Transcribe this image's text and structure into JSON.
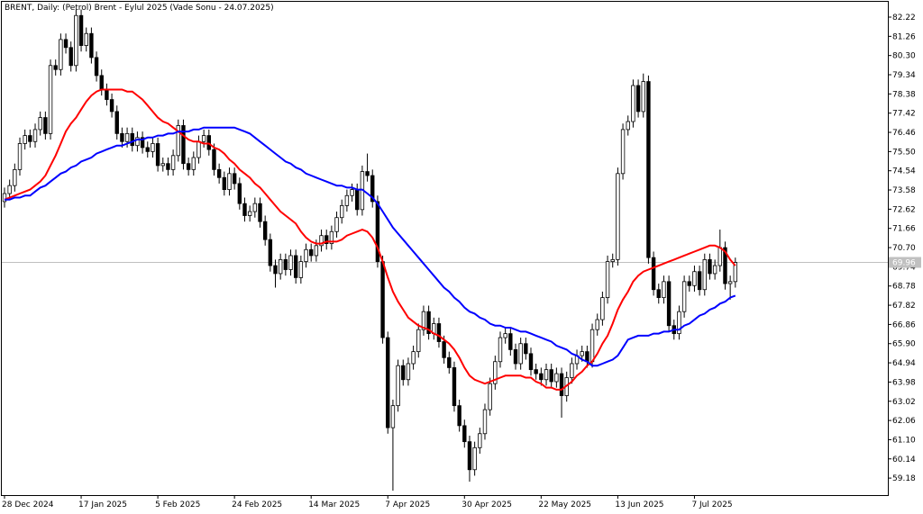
{
  "chart_data": {
    "type": "candlestick",
    "title": "BRENT, Daily:  (Petrol) Brent - Eylul 2025 (Vade Sonu - 24.07.2025)",
    "categories": [
      "28 Dec 2024",
      null,
      null,
      null,
      null,
      null,
      null,
      null,
      null,
      null,
      null,
      null,
      null,
      null,
      null,
      "17 Jan 2025",
      null,
      null,
      null,
      null,
      null,
      null,
      null,
      null,
      null,
      null,
      null,
      null,
      null,
      null,
      "5 Feb 2025",
      null,
      null,
      null,
      null,
      null,
      null,
      null,
      null,
      null,
      null,
      null,
      null,
      null,
      null,
      "24 Feb 2025",
      null,
      null,
      null,
      null,
      null,
      null,
      null,
      null,
      null,
      null,
      null,
      null,
      null,
      null,
      "14 Mar 2025",
      null,
      null,
      null,
      null,
      null,
      null,
      null,
      null,
      null,
      null,
      null,
      null,
      null,
      null,
      "7 Apr 2025",
      null,
      null,
      null,
      null,
      null,
      null,
      null,
      null,
      null,
      null,
      null,
      null,
      null,
      null,
      "30 Apr 2025",
      null,
      null,
      null,
      null,
      null,
      null,
      null,
      null,
      null,
      null,
      null,
      null,
      null,
      null,
      "22 May 2025",
      null,
      null,
      null,
      null,
      null,
      null,
      null,
      null,
      null,
      null,
      null,
      null,
      null,
      null,
      "13 Jun 2025",
      null,
      null,
      null,
      null,
      null,
      null,
      null,
      null,
      null,
      null,
      null,
      null,
      null,
      null,
      "7 Jul 2025",
      null,
      null,
      null,
      null,
      null,
      null,
      null,
      null
    ],
    "open": [
      73.0,
      73.4,
      73.8,
      74.6,
      75.9,
      76.3,
      76.0,
      76.6,
      77.2,
      76.4,
      79.8,
      79.6,
      81.1,
      80.7,
      79.8,
      82.3,
      80.8,
      81.4,
      80.2,
      79.3,
      78.6,
      78.1,
      77.5,
      76.4,
      76.0,
      76.4,
      75.8,
      76.2,
      75.7,
      75.5,
      75.9,
      74.8,
      74.9,
      74.6,
      75.3,
      76.8,
      74.9,
      74.6,
      75.2,
      76.0,
      76.3,
      75.6,
      74.6,
      74.2,
      73.6,
      74.4,
      73.9,
      72.9,
      72.3,
      72.5,
      72.9,
      72.0,
      71.1,
      69.8,
      69.4,
      70.1,
      69.6,
      70.3,
      69.2,
      70.0,
      70.6,
      70.3,
      70.8,
      71.3,
      70.9,
      71.5,
      72.2,
      72.8,
      73.3,
      73.6,
      72.6,
      74.5,
      74.3,
      73.0,
      70.0,
      66.2,
      61.7,
      62.8,
      64.8,
      64.1,
      64.9,
      65.5,
      66.6,
      67.5,
      66.4,
      66.9,
      66.0,
      65.2,
      64.7,
      62.8,
      61.8,
      61.0,
      59.6,
      60.7,
      61.4,
      62.6,
      63.9,
      65.0,
      66.2,
      66.4,
      65.6,
      64.9,
      65.9,
      65.4,
      64.6,
      64.4,
      64.1,
      64.6,
      64.0,
      64.4,
      63.3,
      64.2,
      64.9,
      65.3,
      65.5,
      65.0,
      66.6,
      67.1,
      68.2,
      70.0,
      70.1,
      74.4,
      76.6,
      77.0,
      78.8,
      77.5,
      79.0,
      70.2,
      68.6,
      68.2,
      69.0,
      66.8,
      66.4,
      67.5,
      69.0,
      68.8,
      69.5,
      68.6,
      70.1,
      69.4,
      69.8,
      70.7,
      68.9,
      69.0
    ],
    "high": [
      73.7,
      74.1,
      74.9,
      76.2,
      76.6,
      76.6,
      76.9,
      77.5,
      77.5,
      80.1,
      80.1,
      81.4,
      81.4,
      81.0,
      82.6,
      82.6,
      81.7,
      81.7,
      80.5,
      79.6,
      78.9,
      78.4,
      77.8,
      76.7,
      76.7,
      76.7,
      76.5,
      76.5,
      76.0,
      76.2,
      76.2,
      75.2,
      75.2,
      75.6,
      77.1,
      77.1,
      75.2,
      75.5,
      76.3,
      76.6,
      76.6,
      75.9,
      74.9,
      74.5,
      74.7,
      74.7,
      74.2,
      73.2,
      72.8,
      73.2,
      73.2,
      72.3,
      71.4,
      70.1,
      70.4,
      70.4,
      70.6,
      70.6,
      70.3,
      70.9,
      70.9,
      71.1,
      71.6,
      71.6,
      71.8,
      72.5,
      73.1,
      73.6,
      73.9,
      73.9,
      74.8,
      75.4,
      74.6,
      73.3,
      70.3,
      66.5,
      63.1,
      65.1,
      65.1,
      65.2,
      65.8,
      66.9,
      67.8,
      67.8,
      67.2,
      67.2,
      66.3,
      65.5,
      65.0,
      63.1,
      62.1,
      61.3,
      61.0,
      61.7,
      62.9,
      64.2,
      65.3,
      66.5,
      66.7,
      66.7,
      65.9,
      66.2,
      66.2,
      65.7,
      64.9,
      64.7,
      64.9,
      64.9,
      64.7,
      64.7,
      64.5,
      65.2,
      65.6,
      65.8,
      65.8,
      66.9,
      67.4,
      68.5,
      70.3,
      70.4,
      74.7,
      76.9,
      77.3,
      79.1,
      79.1,
      79.4,
      79.3,
      70.5,
      68.9,
      69.3,
      69.3,
      67.1,
      67.8,
      69.3,
      69.3,
      69.8,
      69.8,
      70.4,
      70.4,
      70.1,
      71.6,
      71.0,
      69.3,
      70.2
    ],
    "low": [
      72.7,
      73.1,
      73.5,
      74.3,
      75.6,
      75.7,
      75.7,
      76.3,
      76.1,
      76.1,
      79.3,
      79.3,
      80.4,
      79.5,
      79.5,
      80.5,
      80.5,
      79.9,
      79.0,
      78.3,
      77.8,
      77.2,
      76.1,
      75.7,
      75.7,
      75.5,
      75.5,
      75.4,
      75.2,
      75.2,
      74.5,
      74.5,
      74.3,
      74.3,
      75.0,
      74.6,
      74.3,
      74.3,
      74.9,
      75.7,
      75.3,
      74.3,
      73.9,
      73.3,
      73.3,
      73.6,
      72.6,
      72.0,
      72.0,
      72.2,
      71.7,
      70.8,
      69.5,
      68.7,
      69.1,
      69.3,
      69.3,
      68.9,
      68.9,
      69.7,
      70.0,
      70.0,
      70.5,
      70.6,
      70.6,
      71.2,
      71.9,
      72.5,
      73.0,
      72.3,
      72.3,
      74.0,
      72.7,
      69.7,
      65.9,
      61.4,
      58.55,
      62.5,
      63.8,
      63.8,
      64.6,
      65.2,
      66.3,
      66.1,
      66.1,
      65.7,
      64.9,
      64.4,
      62.5,
      61.5,
      60.7,
      59.0,
      59.3,
      60.4,
      61.1,
      62.3,
      63.6,
      64.7,
      65.9,
      65.3,
      64.6,
      64.6,
      65.1,
      64.3,
      64.1,
      63.8,
      63.8,
      63.7,
      63.7,
      62.2,
      63.0,
      63.9,
      64.6,
      65.0,
      64.7,
      64.7,
      66.3,
      66.8,
      67.9,
      69.7,
      69.8,
      74.1,
      76.3,
      76.7,
      77.2,
      77.2,
      69.9,
      68.3,
      67.9,
      67.9,
      66.5,
      66.1,
      66.1,
      67.2,
      68.5,
      68.5,
      68.3,
      68.3,
      69.1,
      69.1,
      69.5,
      68.6,
      68.1,
      68.7
    ],
    "close": [
      73.4,
      73.8,
      74.6,
      75.9,
      76.3,
      76.0,
      76.6,
      77.2,
      76.4,
      79.8,
      79.6,
      81.1,
      80.7,
      79.8,
      82.3,
      80.8,
      81.4,
      80.2,
      79.3,
      78.6,
      78.1,
      77.5,
      76.4,
      76.0,
      76.4,
      75.8,
      76.2,
      75.7,
      75.5,
      75.9,
      74.8,
      74.9,
      74.6,
      75.3,
      76.8,
      74.9,
      74.6,
      75.2,
      76.0,
      76.3,
      75.6,
      74.6,
      74.2,
      73.6,
      74.4,
      73.9,
      72.9,
      72.3,
      72.5,
      72.9,
      72.0,
      71.1,
      69.8,
      69.4,
      70.1,
      69.6,
      70.3,
      69.2,
      70.0,
      70.6,
      70.3,
      70.8,
      71.3,
      70.9,
      71.5,
      72.2,
      72.8,
      73.3,
      73.6,
      72.6,
      74.5,
      74.3,
      73.0,
      70.0,
      66.2,
      61.7,
      62.8,
      64.8,
      64.1,
      64.9,
      65.5,
      66.6,
      67.5,
      66.4,
      66.9,
      66.0,
      65.2,
      64.7,
      62.8,
      61.8,
      61.0,
      59.6,
      60.7,
      61.4,
      62.6,
      63.9,
      65.0,
      66.2,
      66.4,
      65.6,
      64.9,
      65.9,
      65.4,
      64.6,
      64.4,
      64.1,
      64.6,
      64.0,
      64.4,
      63.3,
      64.2,
      64.9,
      65.3,
      65.5,
      65.0,
      66.6,
      67.1,
      68.2,
      70.0,
      70.1,
      74.4,
      76.6,
      77.0,
      78.8,
      77.5,
      79.0,
      70.2,
      68.6,
      68.2,
      69.0,
      66.8,
      66.4,
      67.5,
      69.0,
      68.8,
      69.5,
      68.6,
      70.1,
      69.4,
      69.8,
      70.7,
      68.9,
      69.0,
      69.96
    ],
    "up_color": "#ffffff",
    "down_color": "#000000",
    "series": [
      {
        "color": "#ff0000",
        "values": [
          73.1,
          73.2,
          73.3,
          73.4,
          73.5,
          73.6,
          73.8,
          74.0,
          74.3,
          74.8,
          75.3,
          75.9,
          76.5,
          76.9,
          77.2,
          77.6,
          78.0,
          78.3,
          78.5,
          78.6,
          78.6,
          78.6,
          78.6,
          78.6,
          78.5,
          78.5,
          78.3,
          78.1,
          77.8,
          77.5,
          77.2,
          77.0,
          76.9,
          76.7,
          76.5,
          76.3,
          76.1,
          76.0,
          76.0,
          75.9,
          75.9,
          75.7,
          75.6,
          75.4,
          75.1,
          74.9,
          74.6,
          74.4,
          74.2,
          73.9,
          73.7,
          73.4,
          73.1,
          72.8,
          72.5,
          72.3,
          72.1,
          71.9,
          71.5,
          71.2,
          71.0,
          70.9,
          70.9,
          71.0,
          71.0,
          71.0,
          71.1,
          71.3,
          71.4,
          71.5,
          71.6,
          71.5,
          71.2,
          70.7,
          70.0,
          69.2,
          68.5,
          68.0,
          67.6,
          67.2,
          67.0,
          66.8,
          66.7,
          66.6,
          66.4,
          66.3,
          66.1,
          65.9,
          65.6,
          65.2,
          64.7,
          64.3,
          64.1,
          64.0,
          63.9,
          64.0,
          64.1,
          64.2,
          64.3,
          64.3,
          64.3,
          64.3,
          64.2,
          64.2,
          64.0,
          63.9,
          63.7,
          63.7,
          63.6,
          63.6,
          63.8,
          64.0,
          64.3,
          64.5,
          64.8,
          65.0,
          65.4,
          65.9,
          66.3,
          66.9,
          67.6,
          68.1,
          68.5,
          69.0,
          69.3,
          69.5,
          69.6,
          69.7,
          69.8,
          69.9,
          70.0,
          70.1,
          70.2,
          70.3,
          70.4,
          70.5,
          70.6,
          70.7,
          70.8,
          70.8,
          70.7,
          70.5,
          70.1,
          69.8
        ]
      },
      {
        "color": "#0000ff",
        "values": [
          73.1,
          73.1,
          73.2,
          73.2,
          73.3,
          73.3,
          73.5,
          73.7,
          73.8,
          74.0,
          74.2,
          74.4,
          74.5,
          74.7,
          74.8,
          75.0,
          75.1,
          75.2,
          75.4,
          75.5,
          75.6,
          75.7,
          75.8,
          75.8,
          75.9,
          76.0,
          76.1,
          76.1,
          76.2,
          76.2,
          76.3,
          76.3,
          76.4,
          76.4,
          76.5,
          76.5,
          76.5,
          76.6,
          76.6,
          76.7,
          76.7,
          76.7,
          76.7,
          76.7,
          76.7,
          76.7,
          76.6,
          76.5,
          76.4,
          76.2,
          76.0,
          75.8,
          75.6,
          75.4,
          75.2,
          75.0,
          74.9,
          74.7,
          74.6,
          74.4,
          74.3,
          74.2,
          74.1,
          74.0,
          73.9,
          73.8,
          73.8,
          73.7,
          73.7,
          73.6,
          73.6,
          73.4,
          73.2,
          72.9,
          72.5,
          72.1,
          71.7,
          71.4,
          71.1,
          70.8,
          70.5,
          70.2,
          69.9,
          69.6,
          69.3,
          69.0,
          68.7,
          68.5,
          68.2,
          68.0,
          67.7,
          67.5,
          67.4,
          67.2,
          67.1,
          66.9,
          66.8,
          66.8,
          66.7,
          66.7,
          66.6,
          66.5,
          66.5,
          66.4,
          66.3,
          66.2,
          66.1,
          66.0,
          65.8,
          65.7,
          65.6,
          65.4,
          65.3,
          65.1,
          65.0,
          64.8,
          64.8,
          64.9,
          65.0,
          65.1,
          65.3,
          65.7,
          66.1,
          66.2,
          66.3,
          66.3,
          66.3,
          66.4,
          66.4,
          66.5,
          66.5,
          66.6,
          66.6,
          66.8,
          66.9,
          67.1,
          67.3,
          67.4,
          67.6,
          67.7,
          67.9,
          68.0,
          68.2,
          68.3
        ]
      }
    ],
    "last_price": 69.96,
    "ylim": [
      58.33,
      83.03
    ],
    "yticks": [
      59.18,
      60.14,
      61.1,
      62.06,
      63.02,
      63.98,
      64.94,
      65.9,
      66.86,
      67.82,
      68.78,
      69.74,
      70.7,
      71.66,
      72.62,
      73.58,
      74.54,
      75.5,
      76.46,
      77.42,
      78.38,
      79.34,
      80.3,
      81.26,
      82.22
    ]
  }
}
